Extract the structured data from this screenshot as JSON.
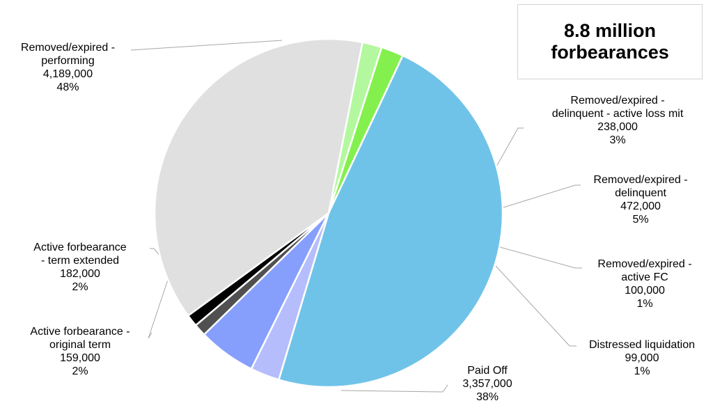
{
  "chart_data": {
    "type": "pie",
    "title": [
      "8.8 million",
      "forbearances"
    ],
    "slices": [
      {
        "label": [
          "Removed/expired -",
          "performing"
        ],
        "value": 4189000,
        "value_label": "4,189,000",
        "percent": "48%",
        "color": "#70c3e8"
      },
      {
        "label": [
          "Removed/expired -",
          "delinquent - active loss mit"
        ],
        "value": 238000,
        "value_label": "238,000",
        "percent": "3%",
        "color": "#b5bdfd"
      },
      {
        "label": [
          "Removed/expired -",
          "delinquent"
        ],
        "value": 472000,
        "value_label": "472,000",
        "percent": "5%",
        "color": "#869ffd"
      },
      {
        "label": [
          "Removed/expired -",
          "active FC"
        ],
        "value": 100000,
        "value_label": "100,000",
        "percent": "1%",
        "color": "#505050"
      },
      {
        "label": [
          "Distressed liquidation"
        ],
        "value": 99000,
        "value_label": "99,000",
        "percent": "1%",
        "color": "#000000"
      },
      {
        "label": [
          "Paid Off"
        ],
        "value": 3357000,
        "value_label": "3,357,000",
        "percent": "38%",
        "color": "#e0e0e0"
      },
      {
        "label": [
          "Active forbearance -",
          "original term"
        ],
        "value": 159000,
        "value_label": "159,000",
        "percent": "2%",
        "color": "#b3f89e"
      },
      {
        "label": [
          "Active forbearance",
          "- term extended"
        ],
        "value": 182000,
        "value_label": "182,000",
        "percent": "2%",
        "color": "#84f04e"
      }
    ]
  }
}
